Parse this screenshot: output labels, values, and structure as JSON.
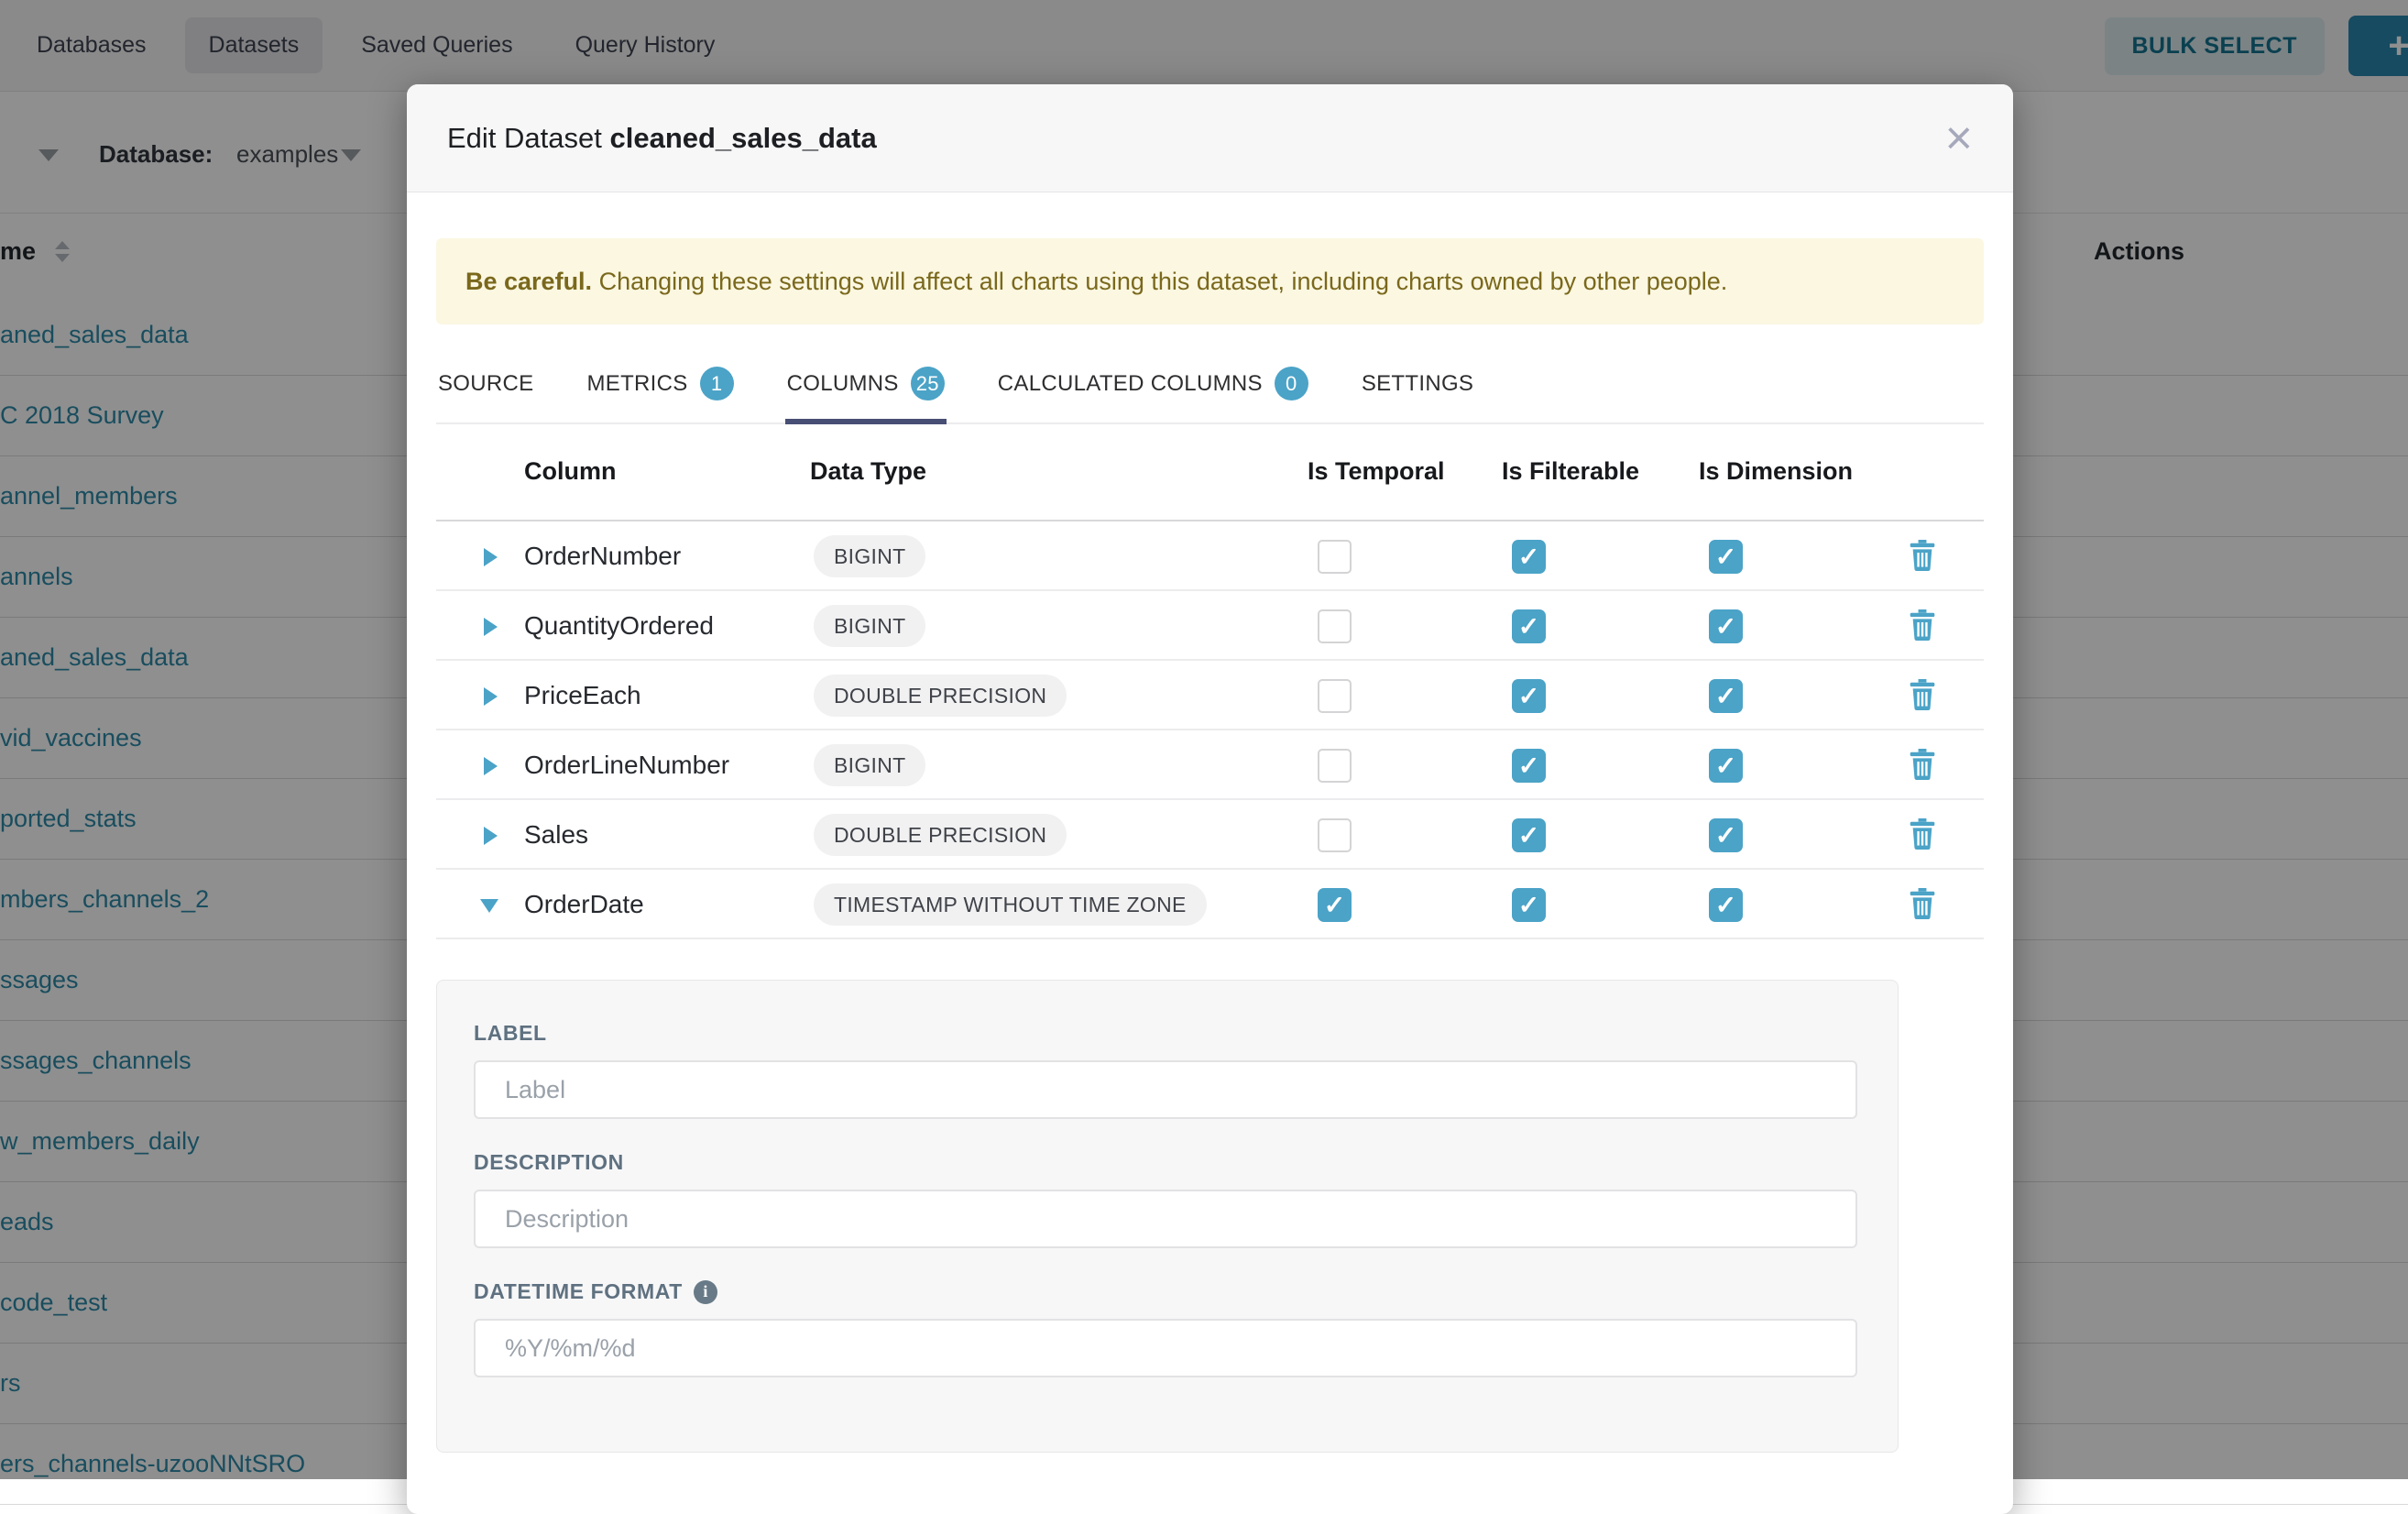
{
  "colors": {
    "accent": "#4BA3C7",
    "tab_underline": "#474F75",
    "warning_bg": "#FBF7E1",
    "warning_text": "#7A681C",
    "link": "#2D8AA8",
    "add_button_bg": "#2887AD"
  },
  "nav": {
    "items": [
      {
        "label": "Databases",
        "active": false
      },
      {
        "label": "Datasets",
        "active": true
      },
      {
        "label": "Saved Queries",
        "active": false
      },
      {
        "label": "Query History",
        "active": false
      }
    ],
    "bulk_select_label": "BULK SELECT",
    "add_button_label": "+"
  },
  "background": {
    "database_filter_label": "Database:",
    "database_filter_value": "examples",
    "name_column_header": "me",
    "actions_column_header": "Actions",
    "rows": [
      "aned_sales_data",
      "C 2018 Survey",
      "annel_members",
      "annels",
      "aned_sales_data",
      "vid_vaccines",
      "ported_stats",
      "mbers_channels_2",
      "ssages",
      "ssages_channels",
      "w_members_daily",
      "eads",
      "code_test",
      "rs",
      "ers_channels-uzooNNtSRO"
    ]
  },
  "modal": {
    "title_prefix": "Edit Dataset ",
    "title_dataset": "cleaned_sales_data",
    "close_label": "×",
    "warning_bold": "Be careful.",
    "warning_text": " Changing these settings will affect all charts using this dataset, including charts owned by other people.",
    "tabs": [
      {
        "label": "SOURCE",
        "badge": null,
        "active": false
      },
      {
        "label": "METRICS",
        "badge": "1",
        "active": false
      },
      {
        "label": "COLUMNS",
        "badge": "25",
        "active": true
      },
      {
        "label": "CALCULATED COLUMNS",
        "badge": "0",
        "active": false
      },
      {
        "label": "SETTINGS",
        "badge": null,
        "active": false
      }
    ],
    "table": {
      "headers": [
        "Column",
        "Data Type",
        "Is Temporal",
        "Is Filterable",
        "Is Dimension"
      ],
      "rows": [
        {
          "name": "OrderNumber",
          "type": "BIGINT",
          "temporal": false,
          "filterable": true,
          "dimension": true,
          "expanded": false
        },
        {
          "name": "QuantityOrdered",
          "type": "BIGINT",
          "temporal": false,
          "filterable": true,
          "dimension": true,
          "expanded": false
        },
        {
          "name": "PriceEach",
          "type": "DOUBLE PRECISION",
          "temporal": false,
          "filterable": true,
          "dimension": true,
          "expanded": false
        },
        {
          "name": "OrderLineNumber",
          "type": "BIGINT",
          "temporal": false,
          "filterable": true,
          "dimension": true,
          "expanded": false
        },
        {
          "name": "Sales",
          "type": "DOUBLE PRECISION",
          "temporal": false,
          "filterable": true,
          "dimension": true,
          "expanded": false
        },
        {
          "name": "OrderDate",
          "type": "TIMESTAMP WITHOUT TIME ZONE",
          "temporal": true,
          "filterable": true,
          "dimension": true,
          "expanded": true
        }
      ]
    },
    "expanded_panel": {
      "fields": [
        {
          "label": "LABEL",
          "placeholder": "Label",
          "info": false
        },
        {
          "label": "DESCRIPTION",
          "placeholder": "Description",
          "info": false
        },
        {
          "label": "DATETIME FORMAT",
          "placeholder": "%Y/%m/%d",
          "info": true
        }
      ]
    }
  }
}
